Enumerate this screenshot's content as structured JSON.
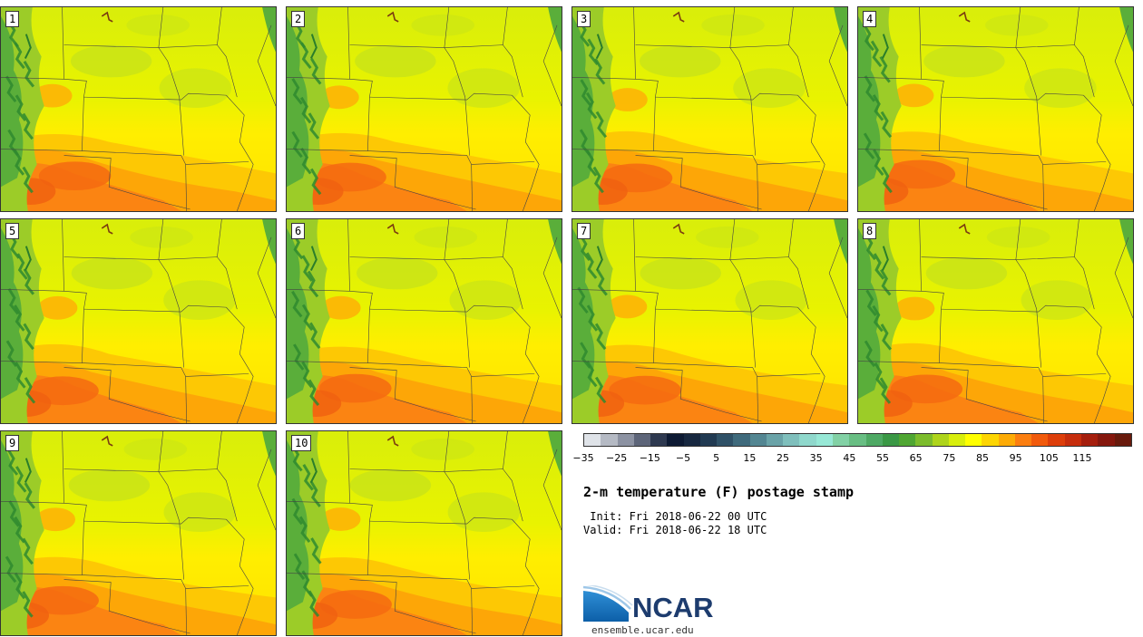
{
  "members": [
    "1",
    "2",
    "3",
    "4",
    "5",
    "6",
    "7",
    "8",
    "9",
    "10"
  ],
  "colorbar": {
    "colors": [
      "#dfe3e8",
      "#b5bac4",
      "#8c92a2",
      "#5d6579",
      "#2e3950",
      "#0d1a33",
      "#172840",
      "#213a52",
      "#2f5167",
      "#3f6a7c",
      "#538692",
      "#6aa3a8",
      "#7fbfbc",
      "#8fd8cc",
      "#97e8d6",
      "#82d1a5",
      "#68be83",
      "#4ea964",
      "#3a9845",
      "#4fa632",
      "#7cbc2c",
      "#aed41b",
      "#d8ee0c",
      "#ffff00",
      "#fdd502",
      "#fdab06",
      "#fb7e10",
      "#f15a0c",
      "#dd3e0a",
      "#c62d0c",
      "#a51e0d",
      "#85170d",
      "#681a0c"
    ],
    "tick_labels": [
      "−35",
      "−25",
      "−15",
      "−5",
      "5",
      "15",
      "25",
      "35",
      "45",
      "55",
      "65",
      "75",
      "85",
      "95",
      "105",
      "115"
    ]
  },
  "title": "2-m temperature (F) postage stamp",
  "init_line": " Init: Fri 2018-06-22 00 UTC",
  "valid_line": "Valid: Fri 2018-06-22 18 UTC",
  "logo": {
    "name": "NCAR",
    "url": "ensemble.ucar.edu",
    "accent": "#1f7ac0",
    "text_color": "#1d3c6e"
  }
}
